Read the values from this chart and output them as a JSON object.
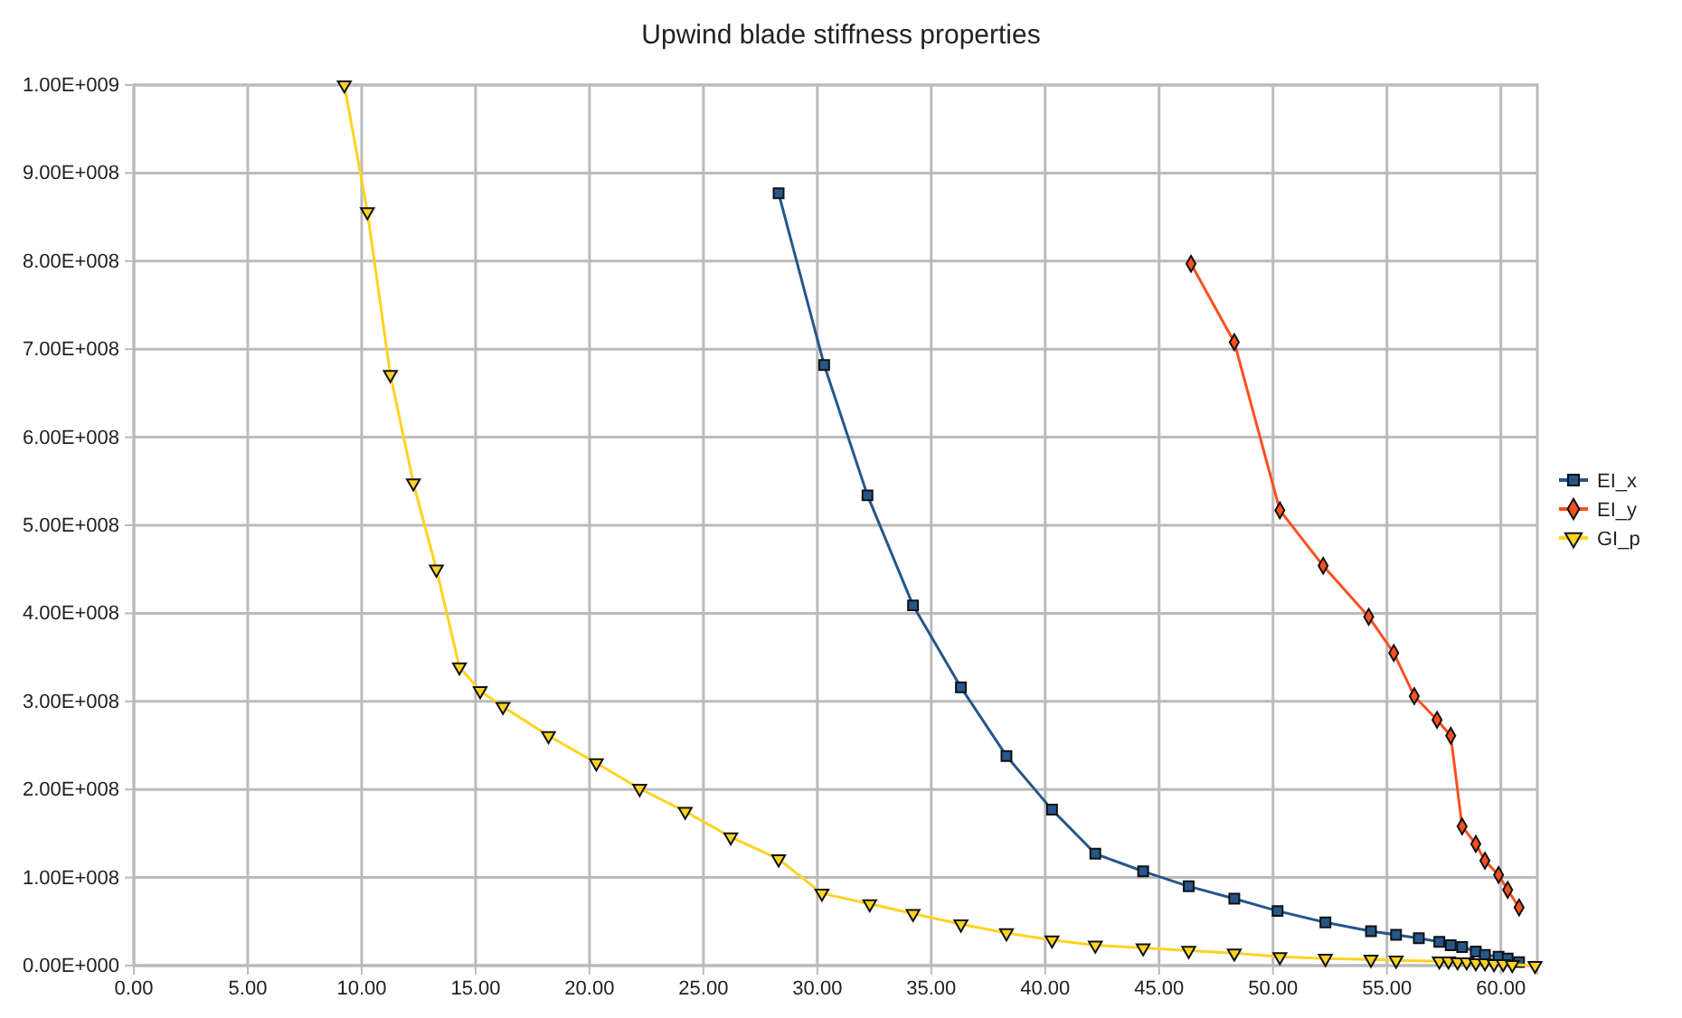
{
  "chart_data": {
    "type": "line",
    "title": "Upwind blade stiffness properties",
    "xlim": [
      0,
      61.6
    ],
    "xticks": [
      {
        "value": 0,
        "label": "0.00"
      },
      {
        "value": 5,
        "label": "5.00"
      },
      {
        "value": 10,
        "label": "10.00"
      },
      {
        "value": 15,
        "label": "15.00"
      },
      {
        "value": 20,
        "label": "20.00"
      },
      {
        "value": 25,
        "label": "25.00"
      },
      {
        "value": 30,
        "label": "30.00"
      },
      {
        "value": 35,
        "label": "35.00"
      },
      {
        "value": 40,
        "label": "40.00"
      },
      {
        "value": 45,
        "label": "45.00"
      },
      {
        "value": 50,
        "label": "50.00"
      },
      {
        "value": 55,
        "label": "55.00"
      },
      {
        "value": 60,
        "label": "60.00"
      }
    ],
    "ylim": [
      0,
      1000000000
    ],
    "yticks": [
      {
        "value": 0,
        "label": "0.00E+000"
      },
      {
        "value": 100000000,
        "label": "1.00E+008"
      },
      {
        "value": 200000000,
        "label": "2.00E+008"
      },
      {
        "value": 300000000,
        "label": "3.00E+008"
      },
      {
        "value": 400000000,
        "label": "4.00E+008"
      },
      {
        "value": 500000000,
        "label": "5.00E+008"
      },
      {
        "value": 600000000,
        "label": "6.00E+008"
      },
      {
        "value": 700000000,
        "label": "7.00E+008"
      },
      {
        "value": 800000000,
        "label": "8.00E+008"
      },
      {
        "value": 900000000,
        "label": "9.00E+008"
      },
      {
        "value": 1000000000,
        "label": "1.00E+009"
      }
    ],
    "grid": true,
    "legend": "right",
    "line_style": "solid",
    "series": [
      {
        "name": "EI_x",
        "color": "#25578a",
        "marker": "square",
        "x": [
          28.3,
          30.3,
          32.2,
          34.2,
          36.3,
          38.3,
          40.3,
          42.2,
          44.3,
          46.3,
          48.3,
          50.2,
          52.3,
          54.3,
          55.4,
          56.4,
          57.3,
          57.8,
          58.3,
          58.9,
          59.3,
          59.9,
          60.3,
          60.8
        ],
        "values": [
          877000000,
          682000000,
          534000000,
          409000000,
          316000000,
          238000000,
          177000000,
          127000000,
          107000000,
          90000000,
          76000000,
          62000000,
          49000000,
          39000000,
          35000000,
          31000000,
          27000000,
          23000000,
          21000000,
          16000000,
          12000000,
          10000000,
          8000000,
          4000000
        ]
      },
      {
        "name": "EI_y",
        "color": "#ff4f1f",
        "marker": "diamond",
        "x": [
          46.4,
          48.3,
          50.3,
          52.2,
          54.2,
          55.3,
          56.2,
          57.2,
          57.8,
          58.3,
          58.9,
          59.3,
          59.9,
          60.3,
          60.8
        ],
        "values": [
          797000000,
          708000000,
          517000000,
          454000000,
          396000000,
          355000000,
          306000000,
          279000000,
          261000000,
          158000000,
          138000000,
          119000000,
          103000000,
          86000000,
          66000000
        ]
      },
      {
        "name": "GI_p",
        "color": "#ffd320",
        "marker": "triangle",
        "x": [
          9.24,
          10.25,
          11.26,
          12.27,
          13.28,
          14.29,
          15.2,
          16.2,
          18.2,
          20.3,
          22.2,
          24.2,
          26.2,
          28.3,
          30.2,
          32.3,
          34.2,
          36.3,
          38.3,
          40.3,
          42.2,
          44.3,
          46.3,
          48.3,
          50.3,
          52.3,
          54.3,
          55.4,
          57.3,
          57.7,
          58.1,
          58.5,
          58.9,
          59.3,
          59.7,
          60.1,
          60.5,
          61.5
        ],
        "values": [
          1000000000,
          856000000,
          671000000,
          548000000,
          450000000,
          339000000,
          312000000,
          294000000,
          261000000,
          230000000,
          201000000,
          175000000,
          146000000,
          121000000,
          82000000,
          70000000,
          59000000,
          47000000,
          37000000,
          29000000,
          23000000,
          20000000,
          17000000,
          14000000,
          10000000,
          8000000,
          7000000,
          6000000,
          5000000,
          5000000,
          4000000,
          4000000,
          3000000,
          3000000,
          2000000,
          2000000,
          1000000,
          0
        ]
      }
    ]
  }
}
